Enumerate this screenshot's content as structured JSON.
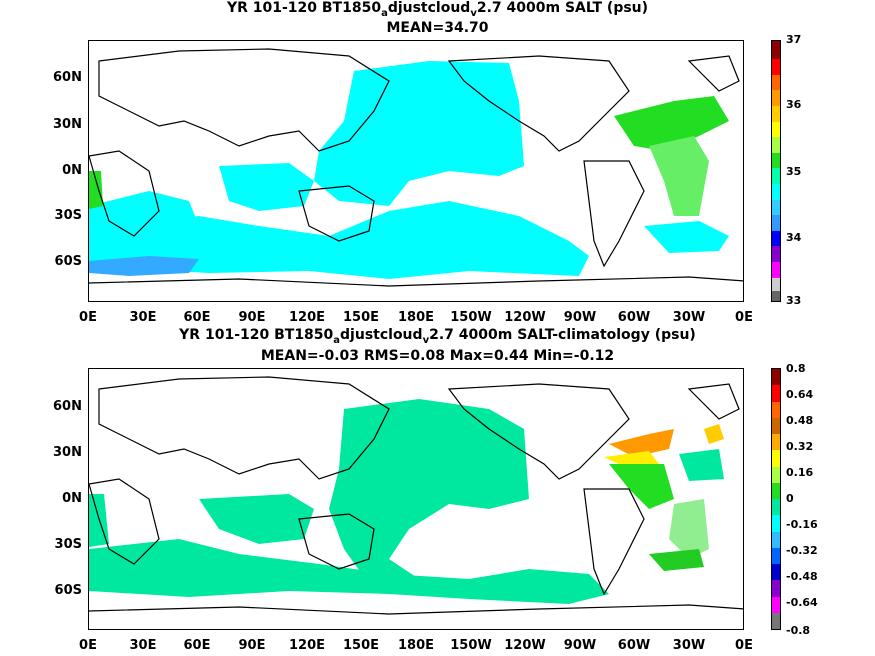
{
  "panel1": {
    "title_pre": "YR 101-120 BT1850",
    "title_sub1": "a",
    "title_mid": "djustcloud",
    "title_sub2": "v",
    "title_post": "2.7 4000m SALT (psu)",
    "stats": "MEAN=34.70",
    "colorbar_labels": [
      "37",
      "36",
      "35",
      "34",
      "33"
    ]
  },
  "panel2": {
    "title_pre": "YR 101-120 BT1850",
    "title_sub1": "a",
    "title_mid": "djustcloud",
    "title_sub2": "v",
    "title_post": "2.7 4000m SALT-climatology (psu)",
    "stats": "MEAN=-0.03   RMS=0.08   Max=0.44   Min=-0.12",
    "colorbar_labels": [
      "0.8",
      "0.64",
      "0.48",
      "0.32",
      "0.16",
      "0",
      "-0.16",
      "-0.32",
      "-0.48",
      "-0.64",
      "-0.8"
    ]
  },
  "lat_labels": [
    "60N",
    "30N",
    "0N",
    "30S",
    "60S"
  ],
  "lon_labels": [
    "0E",
    "30E",
    "60E",
    "90E",
    "120E",
    "150E",
    "180E",
    "150W",
    "120W",
    "90W",
    "60W",
    "30W",
    "0E"
  ],
  "colors": {
    "cyan": "#00ffff",
    "teal_green": "#00e8a0",
    "green": "#22dd22",
    "light_green": "#90ee90",
    "orange": "#ff9900",
    "yellow": "#ffee00",
    "light_blue": "#33bbff",
    "land_outline": "#000000"
  }
}
